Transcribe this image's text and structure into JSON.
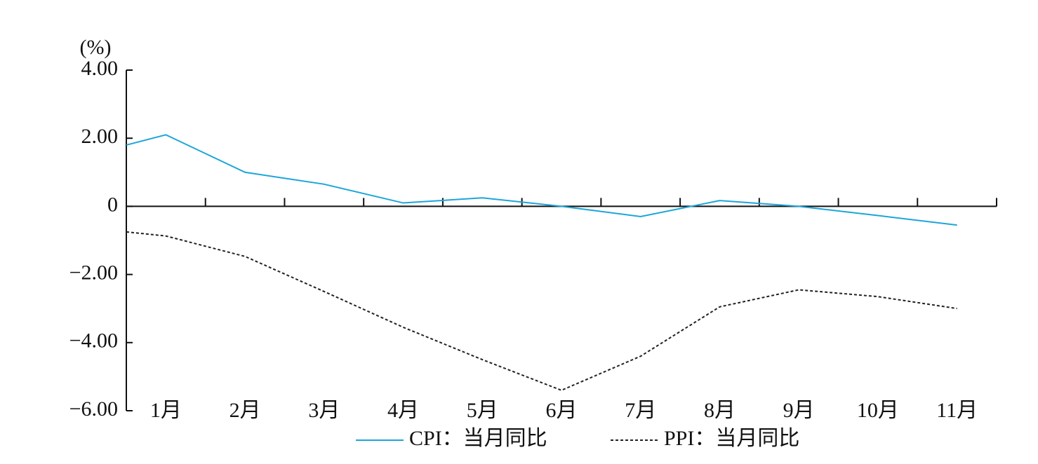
{
  "chart_data": {
    "type": "line",
    "y_axis_label": "(%)",
    "x": [
      0.5,
      1,
      2,
      3,
      4,
      5,
      6,
      7,
      8,
      9,
      10,
      11
    ],
    "xlim": [
      0.5,
      11.5
    ],
    "xticks": [
      {
        "value": 1,
        "label": "1月"
      },
      {
        "value": 2,
        "label": "2月"
      },
      {
        "value": 3,
        "label": "3月"
      },
      {
        "value": 4,
        "label": "4月"
      },
      {
        "value": 5,
        "label": "5月"
      },
      {
        "value": 6,
        "label": "6月"
      },
      {
        "value": 7,
        "label": "7月"
      },
      {
        "value": 8,
        "label": "8月"
      },
      {
        "value": 9,
        "label": "9月"
      },
      {
        "value": 10,
        "label": "10月"
      },
      {
        "value": 11,
        "label": "11月"
      }
    ],
    "ylim": [
      -6,
      4
    ],
    "yticks": [
      {
        "value": 4,
        "label": "4.00"
      },
      {
        "value": 2,
        "label": "2.00"
      },
      0,
      {
        "value": -2,
        "label": "−2.00"
      },
      {
        "value": -4,
        "label": "−4.00"
      },
      {
        "value": -6,
        "label": "−6.00"
      }
    ],
    "series": [
      {
        "name": "CPI：当月同比",
        "color": "#1ba6d9",
        "dash": "solid",
        "values": [
          1.8,
          2.1,
          1.0,
          0.65,
          0.1,
          0.25,
          0,
          -0.3,
          0.17,
          0,
          -0.27,
          -0.55
        ]
      },
      {
        "name": "PPI：当月同比",
        "color": "#222222",
        "dash": "dotted",
        "values": [
          -0.75,
          -0.87,
          -1.47,
          -2.5,
          -3.55,
          -4.5,
          -5.4,
          -4.4,
          -2.95,
          -2.45,
          -2.65,
          -3.0
        ]
      }
    ]
  }
}
